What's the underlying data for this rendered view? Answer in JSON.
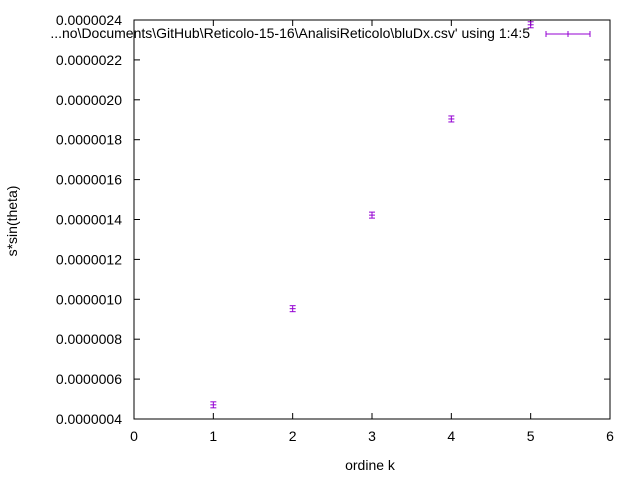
{
  "chart_data": {
    "type": "scatter",
    "title": "",
    "xlabel": "ordine k",
    "ylabel": "s*sin(theta)",
    "xlim": [
      0,
      6
    ],
    "ylim": [
      4e-07,
      2.4e-06
    ],
    "x_ticks": [
      "0",
      "1",
      "2",
      "3",
      "4",
      "5",
      "6"
    ],
    "y_ticks": [
      "0.0000004",
      "0.0000006",
      "0.0000008",
      "0.0000010",
      "0.0000012",
      "0.0000014",
      "0.0000016",
      "0.0000018",
      "0.0000020",
      "0.0000022",
      "0.0000024"
    ],
    "grid": false,
    "legend_position": "top-right",
    "series": [
      {
        "name": "...no\\Documents\\GitHub\\Reticolo-15-16\\AnalisiReticolo\\bluDx.csv' using 1:4:5",
        "color": "#9400d3",
        "error_bars": "xy",
        "points": [
          {
            "x": 1,
            "y": 4.71e-07
          },
          {
            "x": 2,
            "y": 9.53e-07
          },
          {
            "x": 3,
            "y": 1.422e-06
          },
          {
            "x": 4,
            "y": 1.904e-06
          },
          {
            "x": 5,
            "y": 2.376e-06
          }
        ]
      }
    ]
  }
}
